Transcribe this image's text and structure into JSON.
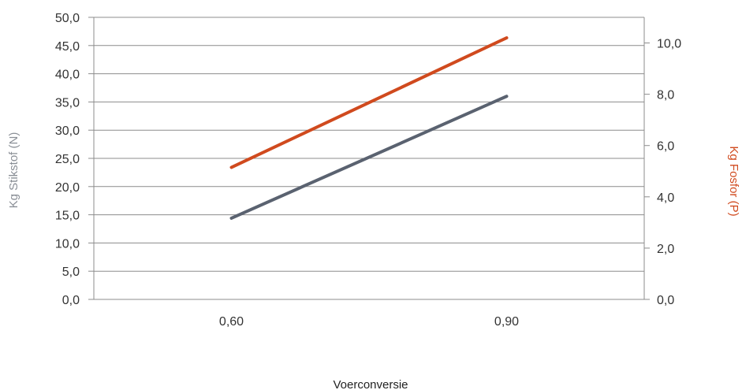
{
  "chart_data": {
    "type": "line",
    "categories": [
      "0,60",
      "0,90"
    ],
    "xlabel": "Voerconversie",
    "ylabel_left": "Kg Stikstof (N)",
    "ylabel_right": "Kg Fosfor (P)",
    "y_left": {
      "min": 0,
      "max": 50,
      "ticks": [
        0,
        5,
        10,
        15,
        20,
        25,
        30,
        35,
        40,
        45,
        50
      ],
      "tick_labels": [
        "0,0",
        "5,0",
        "10,0",
        "15,0",
        "20,0",
        "25,0",
        "30,0",
        "35,0",
        "40,0",
        "45,0",
        "50,0"
      ]
    },
    "y_right": {
      "min": 0,
      "max": 11,
      "ticks": [
        0,
        2,
        4,
        6,
        8,
        10
      ],
      "tick_labels": [
        "0,0",
        "2,0",
        "4,0",
        "6,0",
        "8,0",
        "10,0"
      ]
    },
    "grid": true,
    "legend": "none",
    "series": [
      {
        "axis": "left",
        "color": "#5a6270",
        "values": [
          14.4,
          36.0
        ]
      },
      {
        "axis": "right",
        "color": "#d04a1e",
        "values": [
          5.15,
          10.2
        ]
      }
    ],
    "colors": {
      "left_axis_title": "#8a8f96",
      "right_axis_title": "#d04a1e",
      "gridline": "#8c8c8c"
    }
  }
}
